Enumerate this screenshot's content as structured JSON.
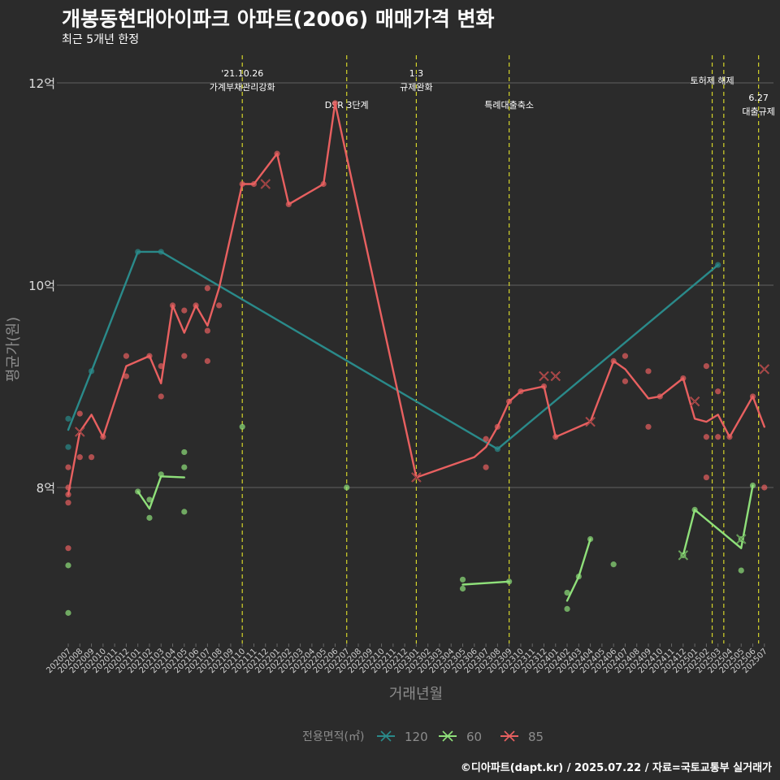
{
  "title": "개봉동현대아이파크 아파트(2006) 매매가격 변화",
  "subtitle": "최근 5개년 한정",
  "caption": "©디아파트(dapt.kr) / 2025.07.22 / 자료=국토교통부 실거래가",
  "colors": {
    "background": "#2b2b2b",
    "grid": "#575757",
    "vline": "#d4d42a",
    "s120": "#2a8a8a",
    "s60": "#8fe07a",
    "s85": "#e86060"
  },
  "chart_data": {
    "type": "line",
    "xlabel": "거래년월",
    "ylabel": "평균가(원)",
    "ylim": [
      6.5,
      12.3
    ],
    "y_ticks": [
      {
        "value": 8,
        "label": "8억"
      },
      {
        "value": 10,
        "label": "10억"
      },
      {
        "value": 12,
        "label": "12억"
      }
    ],
    "grid": true,
    "x_categories": [
      "202007",
      "202008",
      "202009",
      "202010",
      "202011",
      "202012",
      "202101",
      "202102",
      "202103",
      "202104",
      "202105",
      "202106",
      "202107",
      "202108",
      "202109",
      "202110",
      "202111",
      "202112",
      "202201",
      "202202",
      "202203",
      "202204",
      "202205",
      "202206",
      "202207",
      "202208",
      "202209",
      "202210",
      "202211",
      "202212",
      "202301",
      "202302",
      "202303",
      "202304",
      "202305",
      "202306",
      "202307",
      "202308",
      "202309",
      "202310",
      "202311",
      "202312",
      "202401",
      "202402",
      "202403",
      "202404",
      "202405",
      "202406",
      "202407",
      "202408",
      "202409",
      "202410",
      "202411",
      "202412",
      "202501",
      "202502",
      "202503",
      "202504",
      "202505",
      "202506",
      "202507"
    ],
    "legend": {
      "title": "전용면적(㎡)",
      "position": "bottom",
      "entries": [
        {
          "label": "120",
          "series": "s120"
        },
        {
          "label": "60",
          "series": "s60"
        },
        {
          "label": "85",
          "series": "s85"
        }
      ]
    },
    "annotations": [
      {
        "x": 15,
        "lines": [
          "'21.10.26",
          "가계부채관리강화"
        ],
        "level": "top"
      },
      {
        "x": 24,
        "lines": [
          "DSR 3단계"
        ],
        "level": "mid"
      },
      {
        "x": 30,
        "lines": [
          "1.3",
          "규제완화"
        ],
        "level": "top"
      },
      {
        "x": 38,
        "lines": [
          "특례대출축소"
        ],
        "level": "mid"
      },
      {
        "x": 55.5,
        "lines": [
          "토허제 해제"
        ],
        "level": "top"
      },
      {
        "x": 56.5,
        "lines": [],
        "level": "none"
      },
      {
        "x": 59.5,
        "lines": [
          "6.27",
          "대출규제"
        ],
        "level": "low"
      }
    ],
    "series": [
      {
        "name": "120",
        "color": "s120",
        "line": [
          [
            0,
            8.57
          ],
          [
            2,
            9.15
          ],
          [
            6,
            10.33
          ],
          [
            8,
            10.33
          ],
          [
            37,
            8.38
          ],
          [
            56,
            10.2
          ]
        ],
        "points": [
          [
            0,
            8.68
          ],
          [
            0,
            8.4
          ],
          [
            2,
            9.15
          ],
          [
            6,
            10.33
          ],
          [
            8,
            10.33
          ],
          [
            37,
            8.38
          ],
          [
            56,
            10.2
          ]
        ],
        "crosses": []
      },
      {
        "name": "60",
        "color": "s60",
        "line_segments": [
          [
            [
              6,
              7.96
            ],
            [
              7,
              7.79
            ],
            [
              8,
              8.11
            ],
            [
              10,
              8.1
            ]
          ],
          [
            [
              34,
              7.04
            ],
            [
              38,
              7.07
            ]
          ],
          [
            [
              43,
              6.88
            ],
            [
              44,
              7.12
            ],
            [
              45,
              7.49
            ]
          ],
          [
            [
              53,
              7.33
            ],
            [
              54,
              7.78
            ],
            [
              58,
              7.4
            ],
            [
              59,
              8.02
            ]
          ]
        ],
        "points": [
          [
            0,
            7.23
          ],
          [
            0,
            6.76
          ],
          [
            6,
            7.96
          ],
          [
            7,
            7.7
          ],
          [
            7,
            7.88
          ],
          [
            8,
            8.13
          ],
          [
            10,
            7.76
          ],
          [
            10,
            8.2
          ],
          [
            10,
            8.35
          ],
          [
            15,
            8.6
          ],
          [
            24,
            8
          ],
          [
            34,
            7.09
          ],
          [
            34,
            7
          ],
          [
            38,
            7.07
          ],
          [
            43,
            6.96
          ],
          [
            43,
            6.8
          ],
          [
            44,
            7.12
          ],
          [
            45,
            7.49
          ],
          [
            47,
            7.24
          ],
          [
            53,
            7.33
          ],
          [
            54,
            7.78
          ],
          [
            58,
            7.18
          ],
          [
            58,
            7.49
          ],
          [
            59,
            8.02
          ]
        ],
        "crosses": [
          [
            53,
            7.33
          ],
          [
            58,
            7.49
          ]
        ]
      },
      {
        "name": "85",
        "color": "s85",
        "line": [
          [
            0,
            7.93
          ],
          [
            1,
            8.55
          ],
          [
            2,
            8.72
          ],
          [
            3,
            8.5
          ],
          [
            5,
            9.2
          ],
          [
            7,
            9.3
          ],
          [
            8,
            9.03
          ],
          [
            9,
            9.8
          ],
          [
            10,
            9.53
          ],
          [
            11,
            9.8
          ],
          [
            12,
            9.6
          ],
          [
            13,
            9.97
          ],
          [
            15,
            11.0
          ],
          [
            16,
            11.0
          ],
          [
            18,
            11.3
          ],
          [
            19,
            10.8
          ],
          [
            22,
            11.0
          ],
          [
            23,
            11.8
          ],
          [
            30,
            8.1
          ],
          [
            35,
            8.3
          ],
          [
            36,
            8.4
          ],
          [
            37,
            8.6
          ],
          [
            38,
            8.85
          ],
          [
            39,
            8.95
          ],
          [
            41,
            9.0
          ],
          [
            42,
            8.5
          ],
          [
            45,
            8.65
          ],
          [
            47,
            9.25
          ],
          [
            48,
            9.17
          ],
          [
            50,
            8.88
          ],
          [
            51,
            8.9
          ],
          [
            53,
            9.08
          ],
          [
            54,
            8.68
          ],
          [
            55,
            8.65
          ],
          [
            56,
            8.72
          ],
          [
            57,
            8.5
          ],
          [
            59,
            8.9
          ],
          [
            60,
            8.6
          ]
        ],
        "points": [
          [
            0,
            7.93
          ],
          [
            0,
            8.0
          ],
          [
            0,
            7.85
          ],
          [
            0,
            8.2
          ],
          [
            0,
            7.4
          ],
          [
            1,
            8.73
          ],
          [
            1,
            8.3
          ],
          [
            2,
            8.3
          ],
          [
            3,
            8.5
          ],
          [
            5,
            9.3
          ],
          [
            5,
            9.1
          ],
          [
            7,
            9.3
          ],
          [
            8,
            9.2
          ],
          [
            8,
            8.9
          ],
          [
            9,
            9.8
          ],
          [
            10,
            9.3
          ],
          [
            10,
            9.75
          ],
          [
            11,
            9.8
          ],
          [
            12,
            9.55
          ],
          [
            12,
            9.25
          ],
          [
            12,
            9.97
          ],
          [
            13,
            9.8
          ],
          [
            15,
            11.0
          ],
          [
            16,
            11.0
          ],
          [
            18,
            11.3
          ],
          [
            19,
            10.8
          ],
          [
            22,
            11.0
          ],
          [
            23,
            11.8
          ],
          [
            36,
            8.48
          ],
          [
            36,
            8.2
          ],
          [
            37,
            8.6
          ],
          [
            38,
            8.85
          ],
          [
            39,
            8.95
          ],
          [
            41,
            9.0
          ],
          [
            42,
            8.5
          ],
          [
            47,
            9.25
          ],
          [
            48,
            9.3
          ],
          [
            48,
            9.05
          ],
          [
            50,
            9.15
          ],
          [
            50,
            8.6
          ],
          [
            51,
            8.9
          ],
          [
            53,
            9.08
          ],
          [
            55,
            8.1
          ],
          [
            55,
            8.5
          ],
          [
            55,
            9.2
          ],
          [
            56,
            8.5
          ],
          [
            56,
            8.95
          ],
          [
            57,
            8.5
          ],
          [
            59,
            8.9
          ],
          [
            60,
            8.0
          ]
        ],
        "crosses": [
          [
            1,
            8.55
          ],
          [
            17,
            11.0
          ],
          [
            30,
            8.1
          ],
          [
            41,
            9.1
          ],
          [
            42,
            9.1
          ],
          [
            45,
            8.65
          ],
          [
            54,
            8.85
          ],
          [
            60,
            9.17
          ]
        ]
      }
    ]
  }
}
